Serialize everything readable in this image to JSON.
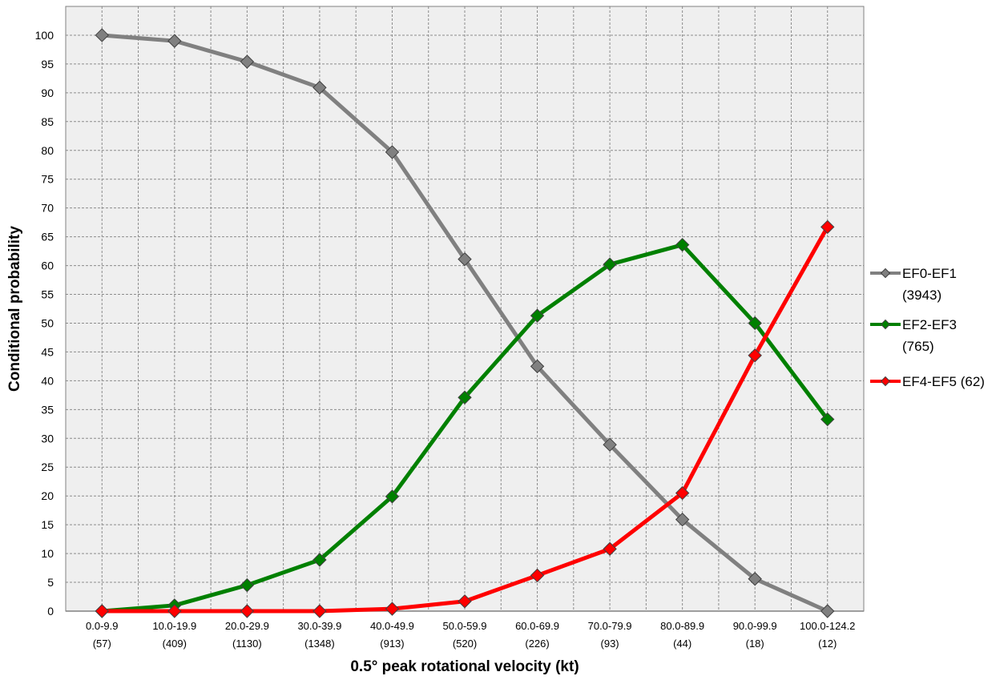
{
  "chart_data": {
    "type": "line",
    "title": "",
    "xlabel": "0.5° peak rotational velocity (kt)",
    "ylabel": "Conditional probability",
    "ylim": [
      0,
      105
    ],
    "y_ticks": [
      0,
      5,
      10,
      15,
      20,
      25,
      30,
      35,
      40,
      45,
      50,
      55,
      60,
      65,
      70,
      75,
      80,
      85,
      90,
      95,
      100
    ],
    "grid": true,
    "legend_position": "right",
    "categories": [
      "0.0-9.9",
      "10.0-19.9",
      "20.0-29.9",
      "30.0-39.9",
      "40.0-49.9",
      "50.0-59.9",
      "60.0-69.9",
      "70.0-79.9",
      "80.0-89.9",
      "90.0-99.9",
      "100.0-124.2"
    ],
    "category_counts": [
      "(57)",
      "(409)",
      "(1130)",
      "(1348)",
      "(913)",
      "(520)",
      "(226)",
      "(93)",
      "(44)",
      "(18)",
      "(12)"
    ],
    "series": [
      {
        "name": "EF0-EF1",
        "legend_lines": [
          "EF0-EF1",
          "(3943)"
        ],
        "color": "#808080",
        "marker": "diamond",
        "values": [
          100,
          99,
          95.4,
          90.9,
          79.7,
          61.1,
          42.5,
          28.9,
          15.9,
          5.6,
          0
        ]
      },
      {
        "name": "EF2-EF3",
        "legend_lines": [
          "EF2-EF3",
          "(765)"
        ],
        "color": "#008000",
        "marker": "diamond",
        "values": [
          0,
          1.0,
          4.5,
          8.9,
          19.9,
          37.1,
          51.3,
          60.2,
          63.6,
          50.0,
          33.3
        ]
      },
      {
        "name": "EF4-EF5 (62)",
        "legend_lines": [
          "EF4-EF5 (62)"
        ],
        "color": "#ff0000",
        "marker": "diamond",
        "values": [
          0,
          0,
          0,
          0,
          0.4,
          1.7,
          6.2,
          10.8,
          20.5,
          44.4,
          66.7
        ]
      }
    ]
  }
}
